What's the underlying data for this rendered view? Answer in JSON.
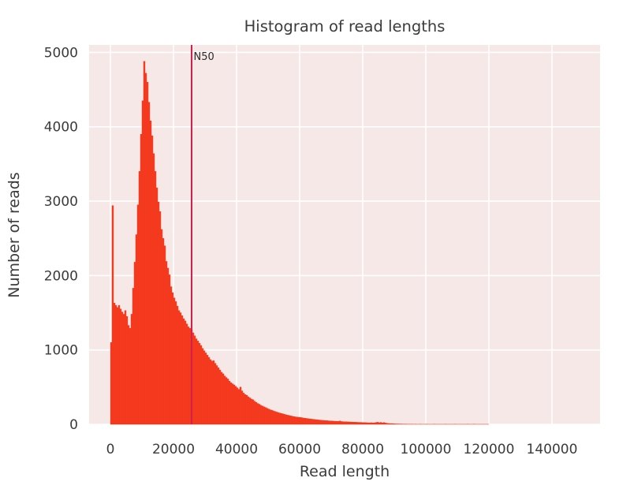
{
  "colors": {
    "figure_bg": "#ffffff",
    "plot_bg": "#f5e8e6",
    "grid": "#ffffff",
    "bar_fill": "#f93d22",
    "bar_edge": "#e63214",
    "n50_line": "#d42048",
    "text": "#3b3b3b",
    "annotation_text": "#2b2b2b"
  },
  "chart_data": {
    "type": "bar",
    "subtype": "histogram",
    "title": "Histogram of read lengths",
    "xlabel": "Read length",
    "ylabel": "Number of reads",
    "xlim": [
      -6750,
      155250
    ],
    "ylim": [
      0,
      5100
    ],
    "grid": true,
    "legend_position": "none",
    "x_tick_values": [
      0,
      20000,
      40000,
      60000,
      80000,
      100000,
      120000,
      140000
    ],
    "x_tick_labels": [
      "0",
      "20000",
      "40000",
      "60000",
      "80000",
      "100000",
      "120000",
      "140000"
    ],
    "y_tick_values": [
      0,
      1000,
      2000,
      3000,
      4000,
      5000
    ],
    "y_tick_labels": [
      "0",
      "1000",
      "2000",
      "3000",
      "4000",
      "5000"
    ],
    "bin_start": 0,
    "bin_width": 500,
    "values": [
      1100,
      2940,
      1630,
      1600,
      1570,
      1600,
      1550,
      1510,
      1480,
      1530,
      1450,
      1330,
      1290,
      1480,
      1830,
      2180,
      2550,
      2950,
      3400,
      3900,
      4350,
      4880,
      4720,
      4600,
      4330,
      4080,
      3880,
      3640,
      3400,
      3180,
      2990,
      2860,
      2620,
      2500,
      2400,
      2190,
      2100,
      2010,
      1850,
      1770,
      1700,
      1650,
      1590,
      1530,
      1500,
      1460,
      1420,
      1390,
      1350,
      1310,
      1290,
      1270,
      1230,
      1190,
      1150,
      1120,
      1090,
      1060,
      1020,
      990,
      960,
      930,
      900,
      870,
      850,
      855,
      820,
      790,
      760,
      730,
      700,
      680,
      650,
      630,
      610,
      580,
      560,
      545,
      530,
      510,
      490,
      470,
      500,
      450,
      420,
      400,
      390,
      370,
      355,
      340,
      330,
      310,
      295,
      280,
      270,
      255,
      245,
      235,
      225,
      215,
      205,
      195,
      190,
      180,
      172,
      165,
      158,
      152,
      146,
      140,
      134,
      128,
      123,
      118,
      113,
      108,
      104,
      100,
      97,
      95,
      93,
      89,
      85,
      82,
      79,
      76,
      73,
      70,
      68,
      65,
      63,
      60,
      58,
      56,
      54,
      52,
      50,
      49,
      47,
      46,
      45,
      43,
      42,
      41,
      40,
      45,
      38,
      36,
      35,
      34,
      33,
      32,
      31,
      30,
      29,
      28,
      27,
      26,
      26,
      25,
      24,
      23,
      22,
      21,
      20,
      22,
      19,
      21,
      25,
      28,
      22,
      26,
      20,
      24,
      17,
      14,
      11,
      9,
      10,
      7,
      6,
      5,
      5,
      4,
      4,
      3,
      3,
      3,
      2,
      2,
      2,
      2,
      1,
      2,
      1,
      1,
      2,
      1,
      1,
      1,
      2,
      1,
      1,
      1,
      1,
      2,
      1,
      1,
      1,
      1,
      1,
      1,
      2,
      1,
      1,
      1,
      1,
      1,
      2,
      1,
      1,
      1,
      1,
      1,
      1,
      1,
      2,
      1,
      1,
      1,
      2,
      1,
      1,
      1,
      1,
      1,
      1,
      1,
      1,
      1
    ],
    "annotations": [
      {
        "type": "vline",
        "label": "N50",
        "x": 25750
      }
    ]
  }
}
